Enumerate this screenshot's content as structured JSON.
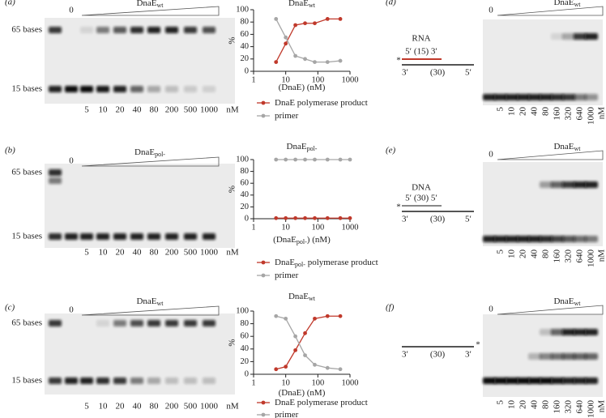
{
  "panel_labels": [
    "(a)",
    "(b)",
    "(c)",
    "(d)",
    "(e)",
    "(f)"
  ],
  "gels": [
    {
      "title": "DnaE",
      "title_sub": "wt",
      "zero": "0",
      "markers": [
        "65 bases",
        "15 bases"
      ],
      "lanes": [
        "5",
        "10",
        "20",
        "40",
        "80",
        "200",
        "500",
        "1000"
      ],
      "unit": "nM"
    },
    {
      "title": "DnaE",
      "title_sub": "pol-",
      "zero": "0",
      "markers": [
        "65 bases",
        "15 bases"
      ],
      "lanes": [
        "5",
        "10",
        "20",
        "40",
        "80",
        "200",
        "500",
        "1000"
      ],
      "unit": "nM"
    },
    {
      "title": "DnaE",
      "title_sub": "wt",
      "zero": "0",
      "markers": [
        "65 bases",
        "15 bases"
      ],
      "lanes": [
        "5",
        "10",
        "20",
        "40",
        "80",
        "200",
        "500",
        "1000"
      ],
      "unit": "nM"
    },
    {
      "title": "DnaE",
      "title_sub": "wt",
      "zero": "0",
      "lanes": [
        "5",
        "10",
        "20",
        "40",
        "80",
        "160",
        "320",
        "640",
        "1000"
      ],
      "unit": "nM"
    },
    {
      "title": "DnaE",
      "title_sub": "wt",
      "zero": "0",
      "lanes": [
        "5",
        "10",
        "20",
        "40",
        "80",
        "160",
        "320",
        "640",
        "1000"
      ],
      "unit": "nM"
    },
    {
      "title": "DnaE",
      "title_sub": "wt",
      "zero": "0",
      "lanes": [
        "5",
        "10",
        "20",
        "40",
        "80",
        "160",
        "320",
        "640",
        "1000"
      ],
      "unit": "nM"
    }
  ],
  "diagrams": [
    {
      "strand_label": "RNA",
      "top_strand": "5′ (15) 3′",
      "bottom_strand": [
        "3′",
        "(30)",
        "5′"
      ],
      "marker": "*"
    },
    {
      "strand_label": "DNA",
      "top_strand": "5′ (30) 5′",
      "bottom_strand": [
        "3′",
        "(30)",
        "5′"
      ],
      "marker": "*"
    },
    {
      "bottom_strand": [
        "3′",
        "(30)",
        "3′"
      ],
      "marker": "*"
    }
  ],
  "chart_data": [
    {
      "type": "line",
      "title": "DnaE",
      "title_sub": "wt",
      "ylabel": "%",
      "xlabel": "(DnaE) (nM)",
      "xscale": "log",
      "xlim": [
        1,
        1000
      ],
      "xticks": [
        1,
        10,
        100,
        1000
      ],
      "ylim": [
        0,
        100
      ],
      "yticks": [
        0,
        20,
        40,
        60,
        80,
        100
      ],
      "series": [
        {
          "name": "DnaE polymerase product",
          "color": "#c0392b",
          "x": [
            5,
            10,
            20,
            40,
            80,
            200,
            500
          ],
          "values": [
            15,
            45,
            75,
            78,
            78,
            85,
            85
          ]
        },
        {
          "name": "primer",
          "color": "#a6a6a6",
          "x": [
            5,
            10,
            20,
            40,
            80,
            200,
            500
          ],
          "values": [
            85,
            55,
            25,
            20,
            15,
            15,
            17
          ]
        }
      ]
    },
    {
      "type": "line",
      "title": "DnaE",
      "title_sub": "pol-",
      "ylabel": "%",
      "xlabel": "(DnaE",
      "xlabel_sub": "pol-",
      "xlabel_end": ") (nM)",
      "xscale": "log",
      "xlim": [
        1,
        1000
      ],
      "xticks": [
        1,
        10,
        100,
        1000
      ],
      "ylim": [
        0,
        100
      ],
      "yticks": [
        0,
        20,
        40,
        60,
        80,
        100
      ],
      "series": [
        {
          "name": "DnaE",
          "name_sub": "pol-",
          "name_end": " polymerase product",
          "color": "#c0392b",
          "x": [
            5,
            10,
            20,
            40,
            80,
            200,
            500,
            1000
          ],
          "values": [
            1,
            1,
            1,
            1,
            1,
            1,
            1,
            1
          ]
        },
        {
          "name": "primer",
          "color": "#a6a6a6",
          "x": [
            5,
            10,
            20,
            40,
            80,
            200,
            500,
            1000
          ],
          "values": [
            100,
            100,
            100,
            100,
            100,
            100,
            100,
            100
          ]
        }
      ]
    },
    {
      "type": "line",
      "title": "DnaE",
      "title_sub": "wt",
      "ylabel": "%",
      "xlabel": "(DnaE) (nM)",
      "xscale": "log",
      "xlim": [
        1,
        1000
      ],
      "xticks": [
        1,
        10,
        100,
        1000
      ],
      "ylim": [
        0,
        100
      ],
      "yticks": [
        0,
        20,
        40,
        60,
        80,
        100
      ],
      "series": [
        {
          "name": "DnaE polymerase product",
          "color": "#c0392b",
          "x": [
            5,
            10,
            20,
            40,
            80,
            200,
            500
          ],
          "values": [
            8,
            12,
            38,
            65,
            88,
            92,
            92
          ]
        },
        {
          "name": "primer",
          "color": "#a6a6a6",
          "x": [
            5,
            10,
            20,
            40,
            80,
            200,
            500
          ],
          "values": [
            92,
            88,
            60,
            30,
            15,
            10,
            8
          ]
        }
      ]
    }
  ]
}
